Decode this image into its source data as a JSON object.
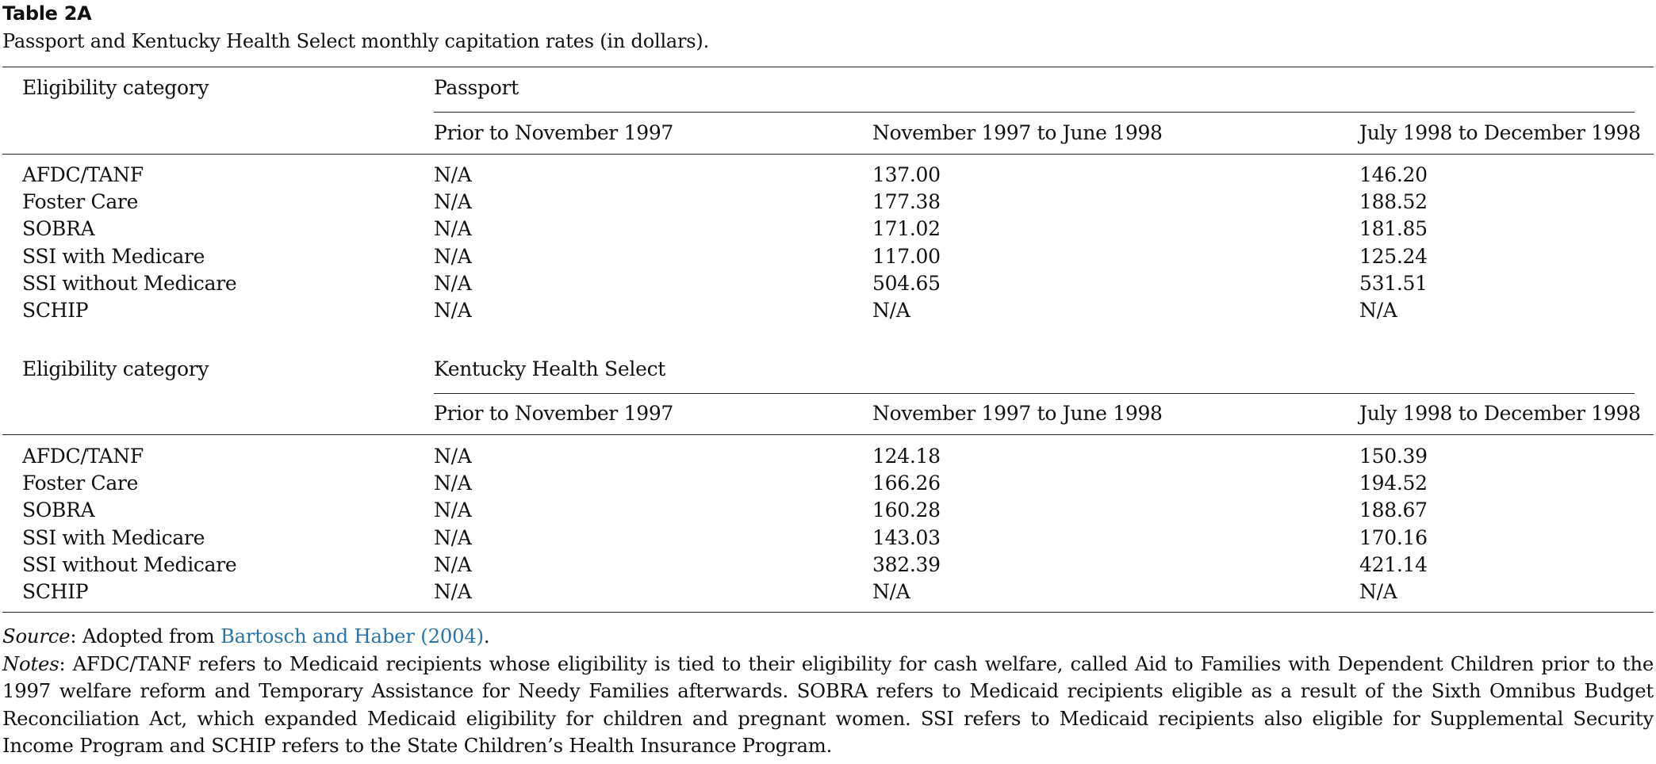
{
  "table": {
    "label": "Table 2A",
    "caption": "Passport and Kentucky Health Select monthly capitation rates (in dollars).",
    "panels": [
      {
        "stub_header": "Eligibility category",
        "group_header": "Passport",
        "columns": [
          "Prior to November 1997",
          "November 1997 to June 1998",
          "July 1998 to December 1998"
        ],
        "rows": [
          {
            "category": "AFDC/TANF",
            "values": [
              "N/A",
              "137.00",
              "146.20"
            ]
          },
          {
            "category": "Foster Care",
            "values": [
              "N/A",
              "177.38",
              "188.52"
            ]
          },
          {
            "category": "SOBRA",
            "values": [
              "N/A",
              "171.02",
              "181.85"
            ]
          },
          {
            "category": "SSI with Medicare",
            "values": [
              "N/A",
              "117.00",
              "125.24"
            ]
          },
          {
            "category": "SSI without Medicare",
            "values": [
              "N/A",
              "504.65",
              "531.51"
            ]
          },
          {
            "category": "SCHIP",
            "values": [
              "N/A",
              "N/A",
              "N/A"
            ]
          }
        ]
      },
      {
        "stub_header": "Eligibility category",
        "group_header": "Kentucky Health Select",
        "columns": [
          "Prior to November 1997",
          "November 1997 to June 1998",
          "July 1998 to December 1998"
        ],
        "rows": [
          {
            "category": "AFDC/TANF",
            "values": [
              "N/A",
              "124.18",
              "150.39"
            ]
          },
          {
            "category": "Foster Care",
            "values": [
              "N/A",
              "166.26",
              "194.52"
            ]
          },
          {
            "category": "SOBRA",
            "values": [
              "N/A",
              "160.28",
              "188.67"
            ]
          },
          {
            "category": "SSI with Medicare",
            "values": [
              "N/A",
              "143.03",
              "170.16"
            ]
          },
          {
            "category": "SSI without Medicare",
            "values": [
              "N/A",
              "382.39",
              "421.14"
            ]
          },
          {
            "category": "SCHIP",
            "values": [
              "N/A",
              "N/A",
              "N/A"
            ]
          }
        ]
      }
    ]
  },
  "footnotes": {
    "source_label": "Source",
    "source_prefix": ": Adopted from ",
    "source_link": "Bartosch and Haber (2004)",
    "source_suffix": ".",
    "notes_label": "Notes",
    "notes_text": ": AFDC/TANF refers to Medicaid recipients whose eligibility is tied to their eligibility for cash welfare, called Aid to Families with Dependent Children prior to the 1997 welfare reform and Temporary Assistance for Needy Families afterwards. SOBRA refers to Medicaid recipients eligible as a result of the Sixth Omnibus Budget Reconciliation Act, which expanded Medicaid eligibility for children and pregnant women. SSI refers to Medicaid recipients also eligible for Supplemental Security Income Program and SCHIP refers to the State Children’s Health Insurance Program."
  },
  "colors": {
    "link": "#2873a8",
    "text": "#111111",
    "rule": "#222222"
  }
}
